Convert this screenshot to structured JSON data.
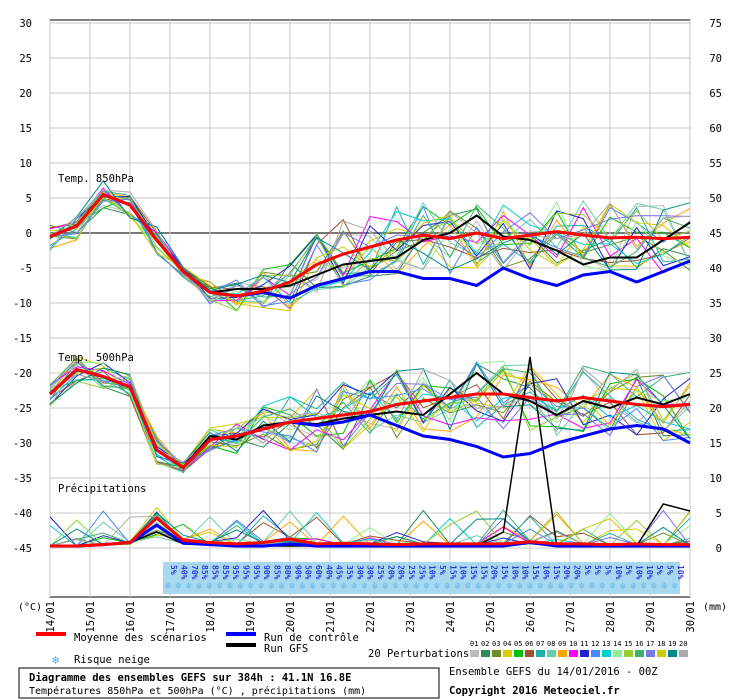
{
  "chart_data": {
    "type": "line",
    "title": "Diagramme des ensembles GEFS sur 384h : 41.1N 16.8E",
    "subtitle": "Températures 850hPa et 500hPa (°C) , précipitations (mm)",
    "ensemble_label": "Ensemble GEFS du 14/01/2016 - 00Z",
    "copyright": "Copyright 2016 Meteociel.fr",
    "left_axis": {
      "unit": "(°C)",
      "ticks": [
        "30",
        "25",
        "20",
        "15",
        "10",
        "5",
        "0",
        "-5",
        "-10",
        "-15",
        "-20",
        "-25",
        "-30",
        "-35",
        "-40",
        "-45"
      ],
      "ylim": [
        -45,
        30
      ]
    },
    "right_axis": {
      "unit": "(mm)",
      "ticks": [
        "75",
        "70",
        "65",
        "60",
        "55",
        "50",
        "45",
        "40",
        "35",
        "30",
        "25",
        "20",
        "15",
        "10",
        "5",
        "0"
      ],
      "ylim": [
        0,
        75
      ]
    },
    "x_labels": [
      "14/01",
      "15/01",
      "16/01",
      "17/01",
      "18/01",
      "19/01",
      "20/01",
      "21/01",
      "22/01",
      "23/01",
      "24/01",
      "25/01",
      "26/01",
      "27/01",
      "28/01",
      "29/01",
      "30/01"
    ],
    "panel_labels": {
      "t850": "Temp. 850hPa",
      "t500": "Temp. 500hPa",
      "precip": "Précipitations"
    },
    "snow_risk": [
      "5%",
      "40%",
      "70%",
      "85%",
      "85%",
      "85%",
      "95%",
      "95%",
      "95%",
      "90%",
      "85%",
      "80%",
      "90%",
      "50%",
      "60%",
      "40%",
      "45%",
      "35%",
      "30%",
      "30%",
      "25%",
      "20%",
      "20%",
      "25%",
      "25%",
      "10%",
      "5%",
      "15%",
      "10%",
      "15%",
      "15%",
      "20%",
      "15%",
      "10%",
      "10%",
      "15%",
      "10%",
      "15%",
      "20%",
      "20%",
      "5%",
      "5%",
      "5%",
      "10%",
      "5%",
      "10%",
      "10%",
      "5%",
      "5%",
      "10%"
    ],
    "series": [
      {
        "name": "Moyenne des scénarios",
        "color": "#ff0000",
        "t850": [
          -0.5,
          1,
          5.5,
          4,
          -1,
          -5.5,
          -8.5,
          -9,
          -8.3,
          -7,
          -4.5,
          -3,
          -2,
          -1,
          -0.3,
          -0.8,
          0,
          -0.8,
          -0.3,
          0.2,
          -0.3,
          -0.7,
          -0.6,
          -0.8,
          -0.6
        ],
        "t500": [
          -23,
          -19.5,
          -20.5,
          -22,
          -31,
          -33.5,
          -29.5,
          -29,
          -28,
          -27,
          -26.5,
          -26,
          -25.5,
          -24.5,
          -24,
          -23.5,
          -23,
          -23,
          -23.5,
          -24,
          -23.5,
          -24,
          -24.5,
          -24.8,
          -24.5
        ],
        "precip": [
          0,
          0,
          0.2,
          0.5,
          4,
          0.8,
          0.5,
          0.3,
          0.5,
          1,
          0.3,
          0.4,
          0.3,
          0.2,
          0.3,
          0.3,
          0.3,
          0.3,
          0.6,
          0.3,
          0.3,
          0.2,
          0.3,
          0.2,
          0.2
        ]
      },
      {
        "name": "Run de contrôle",
        "color": "#0000ff",
        "t850": [
          -0.5,
          1,
          5.5,
          4,
          -1,
          -5.5,
          -8.5,
          -9,
          -8.5,
          -9.3,
          -7.5,
          -6.5,
          -5.5,
          -5.5,
          -6.5,
          -6.5,
          -7.5,
          -5,
          -6.5,
          -7.5,
          -6,
          -5.5,
          -7,
          -5.5,
          -4
        ],
        "t500": [
          -23,
          -19.5,
          -20.5,
          -22,
          -31,
          -33.5,
          -29.5,
          -29,
          -28,
          -27,
          -27.5,
          -27,
          -26,
          -27.5,
          -29,
          -29.5,
          -30.5,
          -32,
          -31.5,
          -30,
          -29,
          -28,
          -27.5,
          -28,
          -30
        ],
        "precip": [
          0,
          0,
          0.2,
          0.5,
          3,
          0.4,
          0.2,
          0,
          0,
          0.3,
          0,
          0,
          0,
          0,
          0,
          0,
          0,
          0,
          0.5,
          0,
          0,
          0,
          0,
          0,
          0
        ]
      },
      {
        "name": "Run GFS",
        "color": "#000000",
        "t850": [
          -0.5,
          1,
          5.5,
          4,
          -1,
          -5.5,
          -8.5,
          -8,
          -8,
          -7.5,
          -6,
          -4.5,
          -4,
          -3.5,
          -1,
          0,
          2.5,
          -0.5,
          -1,
          -2.5,
          -4.5,
          -3.5,
          -3.5,
          -1,
          1.5
        ],
        "t500": [
          -23,
          -19.5,
          -20.5,
          -22,
          -31,
          -33.5,
          -29,
          -29.5,
          -27.5,
          -27,
          -27.3,
          -26.5,
          -26,
          -25.5,
          -26,
          -23,
          -20,
          -23,
          -24,
          -26,
          -24,
          -25,
          -23.5,
          -24.5,
          -23
        ],
        "precip": [
          0,
          0,
          0.2,
          0.5,
          2,
          0.3,
          0.2,
          0,
          0,
          0,
          0,
          0,
          0,
          0,
          0,
          0,
          0,
          2,
          27,
          0,
          0,
          0,
          0,
          6,
          5
        ]
      }
    ],
    "legend": {
      "mean": "Moyenne des scénarios",
      "control": "Run de contrôle",
      "gfs": "Run GFS",
      "snow": "Risque neige",
      "perturbations": "20 Perturbations",
      "perturbation_ids": [
        "01",
        "02",
        "03",
        "04",
        "05",
        "06",
        "07",
        "08",
        "09",
        "10",
        "11",
        "12",
        "13",
        "14",
        "15",
        "16",
        "17",
        "18",
        "19",
        "20"
      ],
      "perturbation_colors": [
        "#bbbbbb",
        "#2e8b57",
        "#6b8e23",
        "#dbcc00",
        "#00c000",
        "#a0522d",
        "#20b2aa",
        "#66cdaa",
        "#ffa500",
        "#ff00ff",
        "#2222cc",
        "#4488ff",
        "#00ced1",
        "#90ee90",
        "#9acd32",
        "#3cb371",
        "#7777ee",
        "#cccc00",
        "#008b8b",
        "#aaaaaa"
      ]
    }
  }
}
